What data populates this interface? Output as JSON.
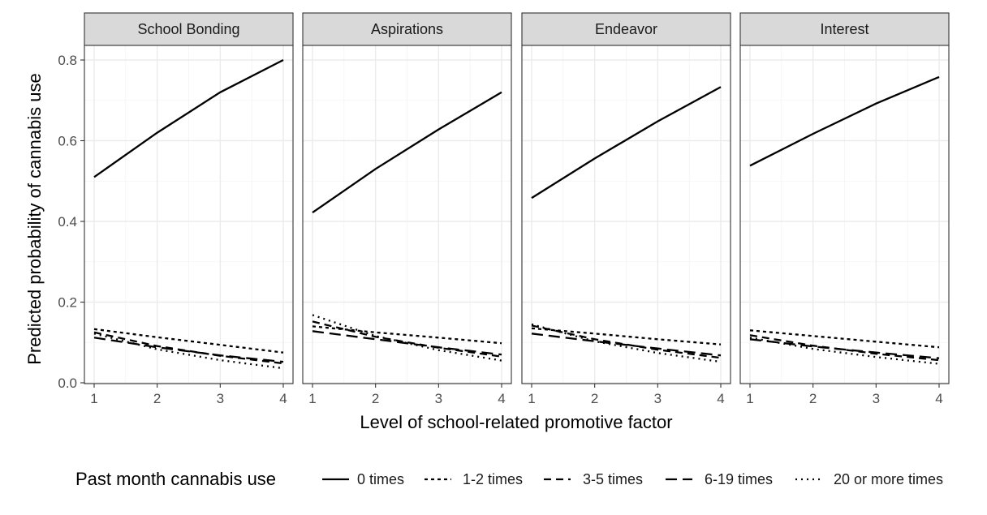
{
  "chart_data": {
    "type": "line",
    "xlabel": "Level of school-related promotive factor",
    "ylabel": "Predicted probability of cannabis use",
    "xlim": [
      1,
      4
    ],
    "ylim": [
      0,
      0.8
    ],
    "x_ticks": [
      "1",
      "2",
      "3",
      "4"
    ],
    "y_ticks": [
      "0.0",
      "0.2",
      "0.4",
      "0.6",
      "0.8"
    ],
    "grid": true,
    "legend": {
      "title": "Past month cannabis use",
      "position": "bottom",
      "entries": [
        {
          "label": "0 times",
          "dash": "solid"
        },
        {
          "label": "1-2 times",
          "dash": "dotted-dash"
        },
        {
          "label": "3-5 times",
          "dash": "dashed"
        },
        {
          "label": "6-19 times",
          "dash": "longdash"
        },
        {
          "label": "20 or more times",
          "dash": "dotted"
        }
      ]
    },
    "x": [
      1,
      2,
      3,
      4
    ],
    "panels": [
      {
        "title": "School Bonding",
        "series": [
          {
            "name": "0 times",
            "values": [
              0.51,
              0.62,
              0.72,
              0.8
            ]
          },
          {
            "name": "1-2 times",
            "values": [
              0.133,
              0.113,
              0.094,
              0.075
            ]
          },
          {
            "name": "3-5 times",
            "values": [
              0.125,
              0.091,
              0.067,
              0.048
            ]
          },
          {
            "name": "6-19 times",
            "values": [
              0.112,
              0.088,
              0.068,
              0.052
            ]
          },
          {
            "name": "20 or more times",
            "values": [
              0.122,
              0.083,
              0.056,
              0.036
            ]
          }
        ]
      },
      {
        "title": "Aspirations",
        "series": [
          {
            "name": "0 times",
            "values": [
              0.422,
              0.53,
              0.628,
              0.72
            ]
          },
          {
            "name": "1-2 times",
            "values": [
              0.14,
              0.125,
              0.112,
              0.098
            ]
          },
          {
            "name": "3-5 times",
            "values": [
              0.152,
              0.114,
              0.087,
              0.065
            ]
          },
          {
            "name": "6-19 times",
            "values": [
              0.128,
              0.108,
              0.088,
              0.07
            ]
          },
          {
            "name": "20 or more times",
            "values": [
              0.168,
              0.116,
              0.081,
              0.055
            ]
          }
        ]
      },
      {
        "title": "Endeavor",
        "series": [
          {
            "name": "0 times",
            "values": [
              0.458,
              0.556,
              0.648,
              0.733
            ]
          },
          {
            "name": "1-2 times",
            "values": [
              0.135,
              0.122,
              0.108,
              0.095
            ]
          },
          {
            "name": "3-5 times",
            "values": [
              0.142,
              0.108,
              0.082,
              0.062
            ]
          },
          {
            "name": "6-19 times",
            "values": [
              0.122,
              0.103,
              0.085,
              0.068
            ]
          },
          {
            "name": "20 or more times",
            "values": [
              0.145,
              0.103,
              0.074,
              0.052
            ]
          }
        ]
      },
      {
        "title": "Interest",
        "series": [
          {
            "name": "0 times",
            "values": [
              0.538,
              0.617,
              0.692,
              0.758
            ]
          },
          {
            "name": "1-2 times",
            "values": [
              0.13,
              0.116,
              0.102,
              0.088
            ]
          },
          {
            "name": "3-5 times",
            "values": [
              0.118,
              0.092,
              0.072,
              0.056
            ]
          },
          {
            "name": "6-19 times",
            "values": [
              0.108,
              0.09,
              0.075,
              0.061
            ]
          },
          {
            "name": "20 or more times",
            "values": [
              0.112,
              0.084,
              0.064,
              0.047
            ]
          }
        ]
      }
    ]
  }
}
